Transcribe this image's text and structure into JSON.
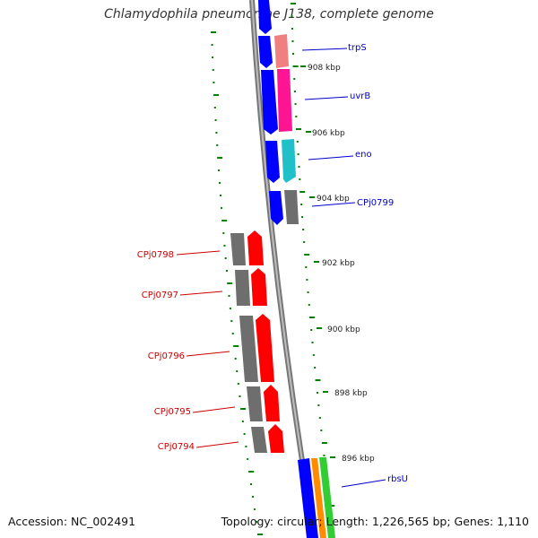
{
  "title": "Chlamydophila pneumoniae J138, complete genome",
  "footer": {
    "accession": "Accession: NC_002491",
    "topology": "Topology: circular; Length: 1,226,565 bp; Genes: 1,110"
  },
  "kbp_labels": [
    "908 kbp",
    "906 kbp",
    "904 kbp",
    "902 kbp",
    "900 kbp",
    "898 kbp",
    "896 kbp"
  ],
  "genes_forward": [
    {
      "name": "trpS"
    },
    {
      "name": "uvrB"
    },
    {
      "name": "eno"
    },
    {
      "name": "CPj0799"
    },
    {
      "name": "rbsU"
    }
  ],
  "genes_reverse": [
    {
      "name": "CPj0798"
    },
    {
      "name": "CPj0797"
    },
    {
      "name": "CPj0796"
    },
    {
      "name": "CPj0795"
    },
    {
      "name": "CPj0794"
    }
  ],
  "colors": {
    "forward_label": "#0000cc",
    "reverse_label": "#cc0000",
    "cds_forward": "#0000ff",
    "cds_reverse": "#ff0000",
    "gene_gray": "#6e6e6e",
    "trpS": "#f08080",
    "uvrB": "#ff1493",
    "eno": "#20c0c8",
    "rbsU_a": "#ff8c00",
    "rbsU_b": "#32cd32",
    "tick": "#008000",
    "backbone": "#777777"
  }
}
